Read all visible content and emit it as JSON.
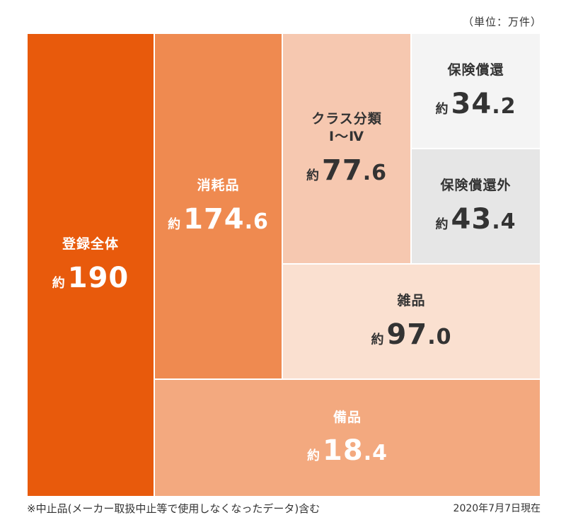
{
  "unit_label": "（単位：万件）",
  "chart_data": {
    "type": "treemap",
    "value_prefix": "約",
    "items": [
      {
        "key": "total",
        "label": "登録全体",
        "value": "190",
        "color": "#e85a0c",
        "text": "light"
      },
      {
        "key": "consumables",
        "label": "消耗品",
        "value": "174.6",
        "color": "#ef8a50",
        "text": "light"
      },
      {
        "key": "class1to4",
        "label": "クラス分類\nⅠ〜Ⅳ",
        "value": "77.6",
        "color": "#f6c8b0",
        "text": "dark"
      },
      {
        "key": "insured",
        "label": "保険償還",
        "value": "34.2",
        "color": "#f4f4f4",
        "text": "dark"
      },
      {
        "key": "noninsured",
        "label": "保険償還外",
        "value": "43.4",
        "color": "#e6e6e6",
        "text": "dark"
      },
      {
        "key": "misc",
        "label": "雑品",
        "value": "97.0",
        "color": "#fae0d0",
        "text": "dark"
      },
      {
        "key": "fixtures",
        "label": "備品",
        "value": "18.4",
        "color": "#f3a97f",
        "text": "light"
      }
    ]
  },
  "footnote": "※中止品(メーカー取扱中止等で使用しなくなったデータ)含む",
  "as_of": "2020年7月7日現在"
}
